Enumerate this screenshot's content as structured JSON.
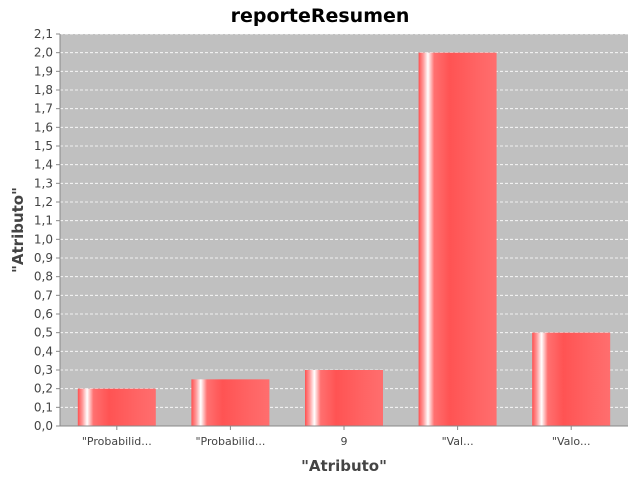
{
  "chart_data": {
    "type": "bar",
    "title": "reporteResumen",
    "xlabel": "\"Atributo\"",
    "ylabel": "\"Atributo\"",
    "categories": [
      "\"Probabilid...",
      "\"Probabilid...",
      "9",
      "\"Val...",
      "\"Valo..."
    ],
    "values": [
      0.2,
      0.25,
      0.3,
      2.0,
      0.5
    ],
    "ylim": [
      0,
      2.1
    ],
    "yticks": [
      "0,0",
      "0,1",
      "0,2",
      "0,3",
      "0,4",
      "0,5",
      "0,6",
      "0,7",
      "0,8",
      "0,9",
      "1,0",
      "1,1",
      "1,2",
      "1,3",
      "1,4",
      "1,5",
      "1,6",
      "1,7",
      "1,8",
      "1,9",
      "2,0",
      "2,1"
    ],
    "grid": true,
    "colors": {
      "plot_background": "#c0c0c0",
      "bar": "#ff5555",
      "bar_highlight": "#ffffff",
      "gridline": "#ffffff"
    }
  }
}
